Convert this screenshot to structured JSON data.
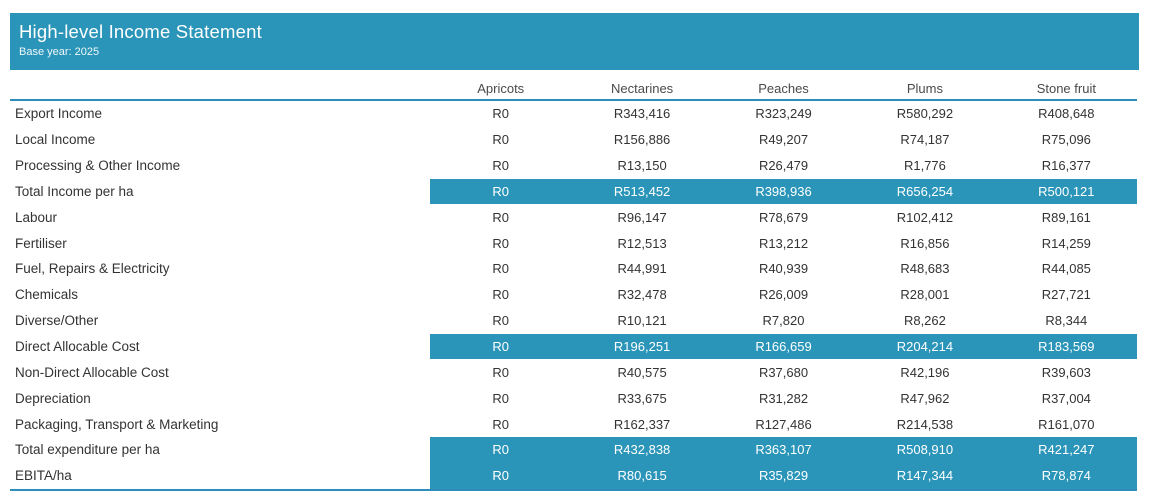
{
  "header": {
    "title": "High-level Income Statement",
    "subtitle": "Base year: 2025"
  },
  "colors": {
    "accent_teal": "#2a95b8",
    "rule_line": "#2d8ebb",
    "body_text": "#333333",
    "header_text": "#4a4a4a",
    "highlight_text": "#ffffff"
  },
  "table": {
    "columns": [
      "Apricots",
      "Nectarines",
      "Peaches",
      "Plums",
      "Stone fruit"
    ],
    "rows": [
      {
        "label": "Export Income",
        "highlighted": false,
        "values": [
          "R0",
          "R343,416",
          "R323,249",
          "R580,292",
          "R408,648"
        ]
      },
      {
        "label": "Local Income",
        "highlighted": false,
        "values": [
          "R0",
          "R156,886",
          "R49,207",
          "R74,187",
          "R75,096"
        ]
      },
      {
        "label": "Processing & Other Income",
        "highlighted": false,
        "values": [
          "R0",
          "R13,150",
          "R26,479",
          "R1,776",
          "R16,377"
        ]
      },
      {
        "label": "Total Income per ha",
        "highlighted": true,
        "values": [
          "R0",
          "R513,452",
          "R398,936",
          "R656,254",
          "R500,121"
        ]
      },
      {
        "label": "Labour",
        "highlighted": false,
        "values": [
          "R0",
          "R96,147",
          "R78,679",
          "R102,412",
          "R89,161"
        ]
      },
      {
        "label": "Fertiliser",
        "highlighted": false,
        "values": [
          "R0",
          "R12,513",
          "R13,212",
          "R16,856",
          "R14,259"
        ]
      },
      {
        "label": "Fuel, Repairs & Electricity",
        "highlighted": false,
        "values": [
          "R0",
          "R44,991",
          "R40,939",
          "R48,683",
          "R44,085"
        ]
      },
      {
        "label": "Chemicals",
        "highlighted": false,
        "values": [
          "R0",
          "R32,478",
          "R26,009",
          "R28,001",
          "R27,721"
        ]
      },
      {
        "label": "Diverse/Other",
        "highlighted": false,
        "values": [
          "R0",
          "R10,121",
          "R7,820",
          "R8,262",
          "R8,344"
        ]
      },
      {
        "label": "Direct Allocable Cost",
        "highlighted": true,
        "values": [
          "R0",
          "R196,251",
          "R166,659",
          "R204,214",
          "R183,569"
        ]
      },
      {
        "label": "Non-Direct Allocable Cost",
        "highlighted": false,
        "values": [
          "R0",
          "R40,575",
          "R37,680",
          "R42,196",
          "R39,603"
        ]
      },
      {
        "label": "Depreciation",
        "highlighted": false,
        "values": [
          "R0",
          "R33,675",
          "R31,282",
          "R47,962",
          "R37,004"
        ]
      },
      {
        "label": "Packaging, Transport & Marketing",
        "highlighted": false,
        "values": [
          "R0",
          "R162,337",
          "R127,486",
          "R214,538",
          "R161,070"
        ]
      },
      {
        "label": "Total expenditure per ha",
        "highlighted": true,
        "values": [
          "R0",
          "R432,838",
          "R363,107",
          "R508,910",
          "R421,247"
        ]
      },
      {
        "label": "EBITA/ha",
        "highlighted": true,
        "values": [
          "R0",
          "R80,615",
          "R35,829",
          "R147,344",
          "R78,874"
        ]
      }
    ]
  }
}
